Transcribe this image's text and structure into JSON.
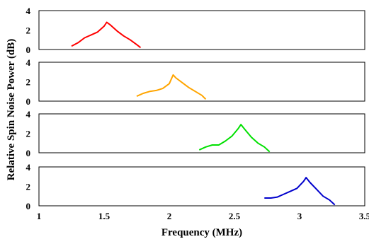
{
  "chart_data": {
    "type": "line",
    "xlabel": "Frequency (MHz)",
    "ylabel": "Relative Spin Noise Power (dB)",
    "xlim": [
      1,
      3.5
    ],
    "ylim": [
      0,
      4
    ],
    "x_ticks": [
      "1",
      "1.5",
      "2",
      "2.5",
      "3",
      "3.5"
    ],
    "y_ticks": [
      "0",
      "2",
      "4"
    ],
    "grid": false,
    "panels": [
      {
        "color": "#ff0000",
        "series": [
          {
            "values": [
              [
                1.25,
                0.35
              ],
              [
                1.3,
                0.7
              ],
              [
                1.35,
                1.2
              ],
              [
                1.4,
                1.5
              ],
              [
                1.45,
                1.8
              ],
              [
                1.5,
                2.4
              ],
              [
                1.52,
                2.8
              ],
              [
                1.55,
                2.5
              ],
              [
                1.6,
                1.9
              ],
              [
                1.65,
                1.4
              ],
              [
                1.7,
                1.0
              ],
              [
                1.75,
                0.5
              ],
              [
                1.78,
                0.2
              ]
            ]
          }
        ]
      },
      {
        "color": "#ffa500",
        "series": [
          {
            "values": [
              [
                1.75,
                0.5
              ],
              [
                1.8,
                0.8
              ],
              [
                1.85,
                1.0
              ],
              [
                1.9,
                1.1
              ],
              [
                1.95,
                1.3
              ],
              [
                2.0,
                1.8
              ],
              [
                2.03,
                2.7
              ],
              [
                2.05,
                2.4
              ],
              [
                2.1,
                1.9
              ],
              [
                2.15,
                1.4
              ],
              [
                2.2,
                1.0
              ],
              [
                2.25,
                0.6
              ],
              [
                2.28,
                0.2
              ]
            ]
          }
        ]
      },
      {
        "color": "#00e000",
        "series": [
          {
            "values": [
              [
                2.23,
                0.3
              ],
              [
                2.28,
                0.6
              ],
              [
                2.33,
                0.8
              ],
              [
                2.38,
                0.8
              ],
              [
                2.43,
                1.2
              ],
              [
                2.48,
                1.7
              ],
              [
                2.53,
                2.5
              ],
              [
                2.55,
                2.9
              ],
              [
                2.58,
                2.4
              ],
              [
                2.63,
                1.6
              ],
              [
                2.68,
                1.0
              ],
              [
                2.73,
                0.6
              ],
              [
                2.77,
                0.1
              ]
            ]
          }
        ]
      },
      {
        "color": "#0000cc",
        "series": [
          {
            "values": [
              [
                2.73,
                0.8
              ],
              [
                2.78,
                0.8
              ],
              [
                2.83,
                0.9
              ],
              [
                2.88,
                1.2
              ],
              [
                2.93,
                1.5
              ],
              [
                2.98,
                1.8
              ],
              [
                3.03,
                2.5
              ],
              [
                3.05,
                2.9
              ],
              [
                3.08,
                2.4
              ],
              [
                3.13,
                1.7
              ],
              [
                3.18,
                1.0
              ],
              [
                3.23,
                0.6
              ],
              [
                3.27,
                0.1
              ]
            ]
          }
        ]
      }
    ]
  }
}
